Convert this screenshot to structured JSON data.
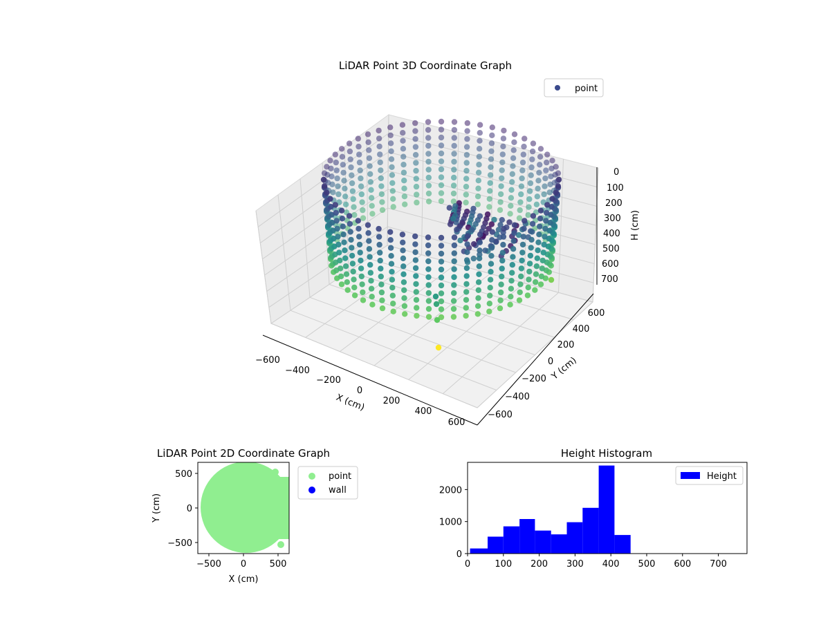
{
  "chart_data": [
    {
      "type": "scatter",
      "title": "LiDAR Point 3D Coordinate Graph",
      "xlabel": "X (cm)",
      "ylabel": "Y (cm)",
      "zlabel": "H (cm)",
      "xticks": [
        "−600",
        "−400",
        "−200",
        "0",
        "200",
        "400",
        "600"
      ],
      "yticks": [
        "−600",
        "−400",
        "−200",
        "0",
        "200",
        "400",
        "600"
      ],
      "zticks": [
        "0",
        "100",
        "200",
        "300",
        "400",
        "500",
        "600",
        "700"
      ],
      "legend": [
        "point"
      ],
      "legend_position": "top-right",
      "colormap": "viridis",
      "series_color": "#3b4a8c",
      "grid": true
    },
    {
      "type": "scatter",
      "title": "LiDAR Point 2D Coordinate Graph",
      "xlabel": "X (cm)",
      "ylabel": "Y (cm)",
      "xticks": [
        "−500",
        "0",
        "500"
      ],
      "yticks": [
        "500",
        "0",
        "−500"
      ],
      "xlim": [
        -650,
        650
      ],
      "ylim": [
        -650,
        650
      ],
      "series": [
        {
          "name": "point",
          "color": "#90ee90",
          "shape": "filled disc approx. radius 600"
        },
        {
          "name": "wall",
          "color": "#0000ff",
          "values": []
        }
      ],
      "legend_position": "outside-right"
    },
    {
      "type": "bar",
      "title": "Height Histogram",
      "xticks": [
        "0",
        "100",
        "200",
        "300",
        "400",
        "500",
        "600",
        "700"
      ],
      "yticks": [
        "0",
        "1000",
        "2000"
      ],
      "xlim": [
        0,
        780
      ],
      "ylim": [
        0,
        2850
      ],
      "bins": [
        {
          "from": 7,
          "to": 56,
          "value": 160
        },
        {
          "from": 56,
          "to": 100,
          "value": 530
        },
        {
          "from": 100,
          "to": 145,
          "value": 850
        },
        {
          "from": 145,
          "to": 188,
          "value": 1080
        },
        {
          "from": 188,
          "to": 233,
          "value": 720
        },
        {
          "from": 233,
          "to": 277,
          "value": 600
        },
        {
          "from": 277,
          "to": 321,
          "value": 980
        },
        {
          "from": 321,
          "to": 366,
          "value": 1430
        },
        {
          "from": 366,
          "to": 410,
          "value": 2750
        },
        {
          "from": 410,
          "to": 455,
          "value": 580
        }
      ],
      "series": [
        {
          "name": "Height",
          "color": "#0000ff"
        }
      ],
      "legend_position": "top-right"
    }
  ]
}
